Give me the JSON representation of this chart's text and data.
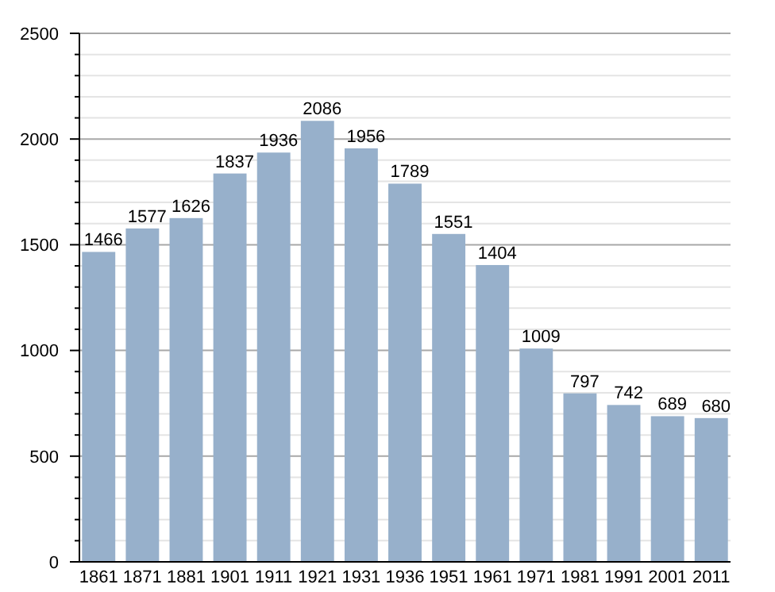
{
  "chart_data": {
    "type": "bar",
    "categories": [
      "1861",
      "1871",
      "1881",
      "1901",
      "1911",
      "1921",
      "1931",
      "1936",
      "1951",
      "1961",
      "1971",
      "1981",
      "1991",
      "2001",
      "2011"
    ],
    "values": [
      1466,
      1577,
      1626,
      1837,
      1936,
      2086,
      1956,
      1789,
      1551,
      1404,
      1009,
      797,
      742,
      689,
      680
    ],
    "color": "#97b0cb",
    "data_labels": true,
    "grid": "y",
    "ylim": [
      0,
      2500
    ],
    "yticks": [
      0,
      {
        "value": 100,
        "label": null
      },
      {
        "value": 200,
        "label": null
      },
      {
        "value": 300,
        "label": null
      },
      {
        "value": 400,
        "label": null
      },
      500,
      {
        "value": 600,
        "label": null
      },
      {
        "value": 700,
        "label": null
      },
      {
        "value": 800,
        "label": null
      },
      {
        "value": 900,
        "label": null
      },
      1000,
      {
        "value": 1100,
        "label": null
      },
      {
        "value": 1200,
        "label": null
      },
      {
        "value": 1300,
        "label": null
      },
      {
        "value": 1400,
        "label": null
      },
      1500,
      {
        "value": 1600,
        "label": null
      },
      {
        "value": 1700,
        "label": null
      },
      {
        "value": 1800,
        "label": null
      },
      {
        "value": 1900,
        "label": null
      },
      2000,
      {
        "value": 2100,
        "label": null
      },
      {
        "value": 2200,
        "label": null
      },
      {
        "value": 2300,
        "label": null
      },
      {
        "value": 2400,
        "label": null
      },
      2500
    ]
  }
}
